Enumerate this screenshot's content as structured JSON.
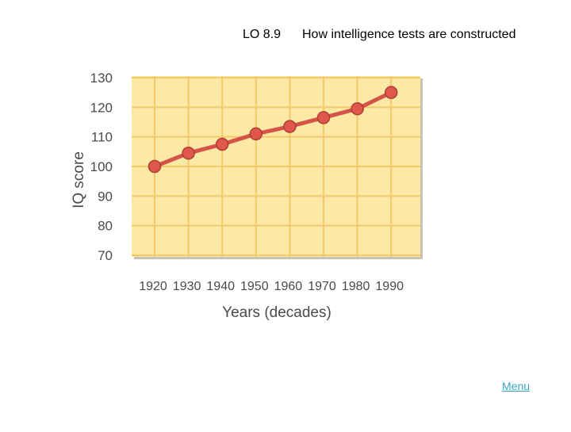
{
  "header": {
    "lo_code": "LO 8.9",
    "lo_title": "How intelligence tests are constructed"
  },
  "footer": {
    "menu_label": "Menu"
  },
  "chart_data": {
    "type": "line",
    "title": "",
    "xlabel": "Years (decades)",
    "ylabel": "IQ score",
    "categories": [
      "1920",
      "1930",
      "1940",
      "1950",
      "1960",
      "1970",
      "1980",
      "1990"
    ],
    "series": [
      {
        "values": [
          100,
          104.5,
          107.5,
          111,
          113.5,
          116.5,
          119.5,
          125
        ]
      }
    ],
    "ylim": [
      70,
      130
    ],
    "yticks": [
      130,
      120,
      110,
      100,
      90,
      80,
      70
    ],
    "grid": true,
    "legend": "none",
    "colors": {
      "plot_background": "#fde9a6",
      "grid": "#f3c969",
      "line": "#d5544a",
      "marker": "#e0584c",
      "marker_edge": "#b03b32",
      "frame_shadow": "#c9c3b4",
      "tick_text": "#4a4a4a"
    }
  }
}
